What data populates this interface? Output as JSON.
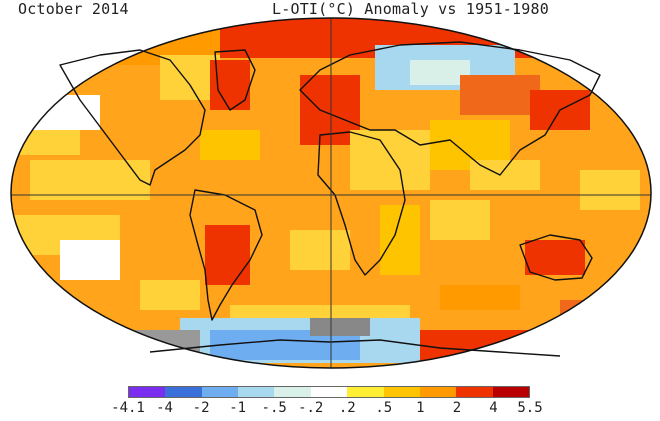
{
  "title_left": "October 2014",
  "title_right": "L-OTI(°C) Anomaly vs 1951-1980",
  "legend": {
    "ticks": [
      "-4.1",
      "-4",
      "-2",
      "-1",
      "-.5",
      "-.2",
      ".2",
      ".5",
      "1",
      "2",
      "4",
      "5.5"
    ],
    "colors": [
      "#7a2ff0",
      "#3b6fd9",
      "#6eaef0",
      "#a8d8f0",
      "#d8f0e8",
      "#ffffff",
      "#ffee33",
      "#ffc400",
      "#ff9a00",
      "#ee3300",
      "#b80000"
    ]
  },
  "map": {
    "projection": "Robinson-like global",
    "ocean_colors": {
      "warm": "#ffa41b",
      "mild": "#ffd23a",
      "hot": "#f0681a",
      "cool": "#c4e6f0",
      "cold": "#6eaef0"
    },
    "coastline_color": "#111111",
    "grid_color": "#333333"
  }
}
